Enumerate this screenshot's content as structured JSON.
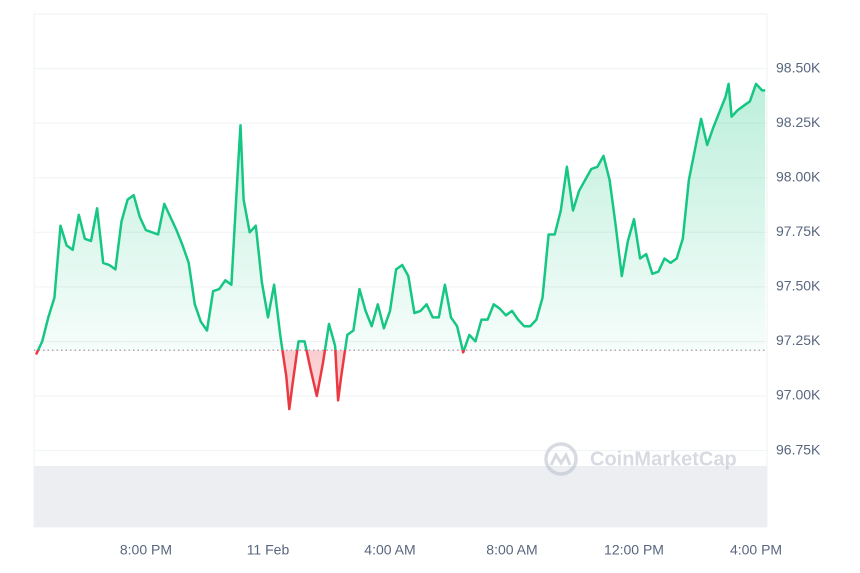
{
  "chart_data": {
    "type": "line",
    "watermark": "CoinMarketCap",
    "baseline": 97.21,
    "x": [
      -7.6,
      -7.4,
      -7.2,
      -7.0,
      -6.8,
      -6.6,
      -6.4,
      -6.2,
      -6.0,
      -5.8,
      -5.6,
      -5.4,
      -5.2,
      -5.0,
      -4.8,
      -4.6,
      -4.4,
      -4.2,
      -4.0,
      -3.8,
      -3.6,
      -3.4,
      -3.2,
      -3.0,
      -2.8,
      -2.6,
      -2.4,
      -2.2,
      -2.0,
      -1.8,
      -1.6,
      -1.4,
      -1.2,
      -1.0,
      -0.9,
      -0.8,
      -0.6,
      -0.4,
      -0.2,
      0.0,
      0.2,
      0.4,
      0.6,
      0.7,
      0.8,
      1.0,
      1.2,
      1.4,
      1.6,
      1.8,
      2.0,
      2.2,
      2.3,
      2.4,
      2.6,
      2.8,
      3.0,
      3.2,
      3.4,
      3.6,
      3.8,
      4.0,
      4.2,
      4.4,
      4.6,
      4.8,
      5.0,
      5.2,
      5.4,
      5.6,
      5.8,
      6.0,
      6.2,
      6.4,
      6.6,
      6.8,
      7.0,
      7.2,
      7.4,
      7.6,
      7.8,
      8.0,
      8.2,
      8.4,
      8.6,
      8.8,
      9.0,
      9.2,
      9.4,
      9.6,
      9.8,
      10.0,
      10.2,
      10.4,
      10.6,
      10.8,
      11.0,
      11.2,
      11.4,
      11.6,
      11.8,
      12.0,
      12.2,
      12.4,
      12.6,
      12.8,
      13.0,
      13.2,
      13.4,
      13.6,
      13.8,
      14.0,
      14.2,
      14.4,
      14.6,
      14.8,
      15.0,
      15.1,
      15.2,
      15.4,
      15.6,
      15.8,
      16.0,
      16.2,
      16.3
    ],
    "series": [
      {
        "color": "#16c784",
        "negative_color": "#ea3943",
        "values": [
          97.19,
          97.25,
          97.36,
          97.45,
          97.78,
          97.69,
          97.67,
          97.83,
          97.72,
          97.71,
          97.86,
          97.61,
          97.6,
          97.58,
          97.8,
          97.9,
          97.92,
          97.82,
          97.76,
          97.75,
          97.74,
          97.88,
          97.82,
          97.76,
          97.69,
          97.61,
          97.42,
          97.34,
          97.3,
          97.48,
          97.49,
          97.53,
          97.51,
          98.01,
          98.24,
          97.9,
          97.75,
          97.78,
          97.52,
          97.36,
          97.51,
          97.28,
          97.09,
          96.94,
          97.05,
          97.25,
          97.25,
          97.12,
          97.0,
          97.15,
          97.33,
          97.23,
          96.98,
          97.09,
          97.28,
          97.3,
          97.49,
          97.39,
          97.32,
          97.42,
          97.31,
          97.39,
          97.58,
          97.6,
          97.55,
          97.38,
          97.39,
          97.42,
          97.36,
          97.36,
          97.51,
          97.36,
          97.32,
          97.2,
          97.28,
          97.25,
          97.35,
          97.35,
          97.42,
          97.4,
          97.37,
          97.39,
          97.35,
          97.32,
          97.32,
          97.35,
          97.45,
          97.74,
          97.74,
          97.85,
          98.05,
          97.85,
          97.94,
          97.99,
          98.04,
          98.05,
          98.1,
          97.99,
          97.78,
          97.55,
          97.71,
          97.81,
          97.63,
          97.65,
          97.56,
          97.57,
          97.63,
          97.61,
          97.63,
          97.72,
          97.99,
          98.13,
          98.27,
          98.15,
          98.23,
          98.3,
          98.37,
          98.43,
          98.28,
          98.31,
          98.33,
          98.35,
          98.43,
          98.4,
          98.4
        ]
      }
    ],
    "xlim": [
      -7.67,
      16.36
    ],
    "ylim": [
      96.4,
      98.75
    ],
    "xticks": [
      {
        "value": -4,
        "label": "8:00 PM"
      },
      {
        "value": 0,
        "label": "11 Feb"
      },
      {
        "value": 4,
        "label": "4:00 AM"
      },
      {
        "value": 8,
        "label": "8:00 AM"
      },
      {
        "value": 12,
        "label": "12:00 PM"
      },
      {
        "value": 16,
        "label": "4:00 PM"
      }
    ],
    "yticks": [
      {
        "value": 96.75,
        "label": "96.75K"
      },
      {
        "value": 97.0,
        "label": "97.00K"
      },
      {
        "value": 97.25,
        "label": "97.25K"
      },
      {
        "value": 97.5,
        "label": "97.50K"
      },
      {
        "value": 97.75,
        "label": "97.75K"
      },
      {
        "value": 98.0,
        "label": "98.00K"
      },
      {
        "value": 98.25,
        "label": "98.25K"
      },
      {
        "value": 98.5,
        "label": "98.50K"
      }
    ],
    "grid": true
  }
}
